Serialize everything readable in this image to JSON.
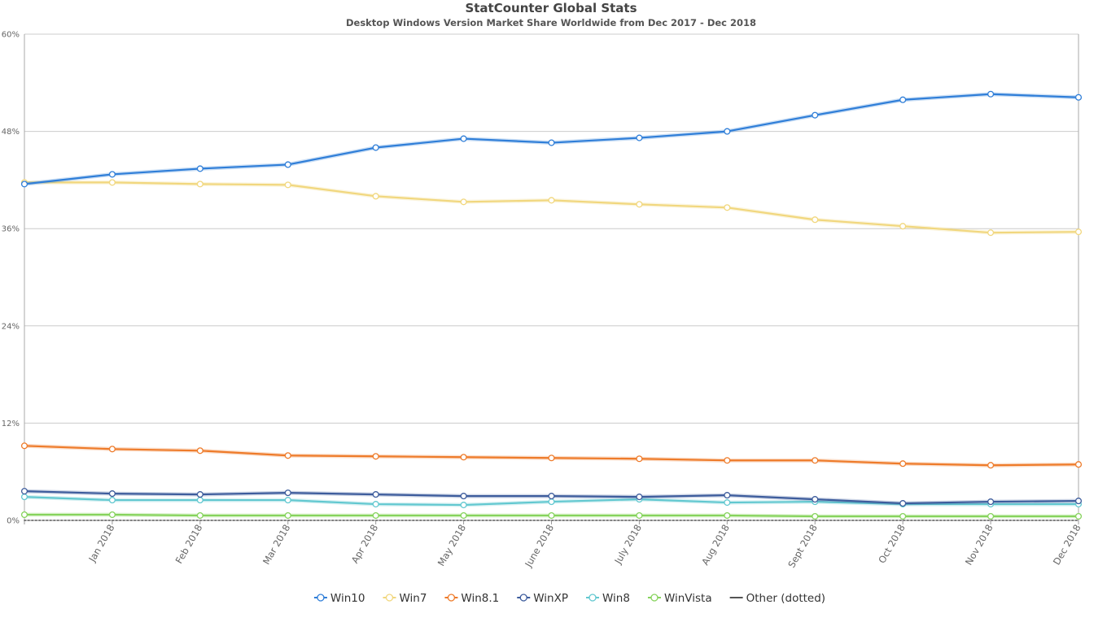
{
  "chart_data": {
    "type": "line",
    "title": "StatCounter Global Stats",
    "subtitle": "Desktop Windows Version Market Share Worldwide from Dec 2017 - Dec 2018",
    "x": [
      "Dec 2017",
      "Jan 2018",
      "Feb 2018",
      "Mar 2018",
      "Apr 2018",
      "May 2018",
      "June 2018",
      "July 2018",
      "Aug 2018",
      "Sept 2018",
      "Oct 2018",
      "Nov 2018",
      "Dec 2018"
    ],
    "x_tick_labels": [
      "Jan 2018",
      "Feb 2018",
      "Mar 2018",
      "Apr 2018",
      "May 2018",
      "June 2018",
      "July 2018",
      "Aug 2018",
      "Sept 2018",
      "Oct 2018",
      "Nov 2018",
      "Dec 2018"
    ],
    "y_tick_labels": [
      "0%",
      "12%",
      "24%",
      "36%",
      "48%",
      "60%"
    ],
    "y_ticks": [
      0,
      12,
      24,
      36,
      48,
      60
    ],
    "ylim": [
      0,
      60
    ],
    "y_unit": "%",
    "grid": true,
    "legend_position": "bottom",
    "series": [
      {
        "name": "Win10",
        "color": "#2f7ed8",
        "style": "solid",
        "values": [
          41.5,
          42.7,
          43.4,
          43.9,
          46.0,
          47.1,
          46.6,
          47.2,
          48.0,
          50.0,
          51.9,
          52.6,
          52.2
        ]
      },
      {
        "name": "Win7",
        "color": "#f1d77e",
        "style": "solid",
        "values": [
          41.7,
          41.7,
          41.5,
          41.4,
          40.0,
          39.3,
          39.5,
          39.0,
          38.6,
          37.1,
          36.3,
          35.5,
          35.6
        ]
      },
      {
        "name": "Win8.1",
        "color": "#ee7b2a",
        "style": "solid",
        "values": [
          9.2,
          8.8,
          8.6,
          8.0,
          7.9,
          7.8,
          7.7,
          7.6,
          7.4,
          7.4,
          7.0,
          6.8,
          6.9
        ]
      },
      {
        "name": "WinXP",
        "color": "#3d5c9c",
        "style": "solid",
        "values": [
          3.6,
          3.3,
          3.2,
          3.4,
          3.2,
          3.0,
          3.0,
          2.9,
          3.1,
          2.6,
          2.1,
          2.3,
          2.4
        ]
      },
      {
        "name": "Win8",
        "color": "#62c8d0",
        "style": "solid",
        "values": [
          2.9,
          2.5,
          2.5,
          2.5,
          2.0,
          1.9,
          2.3,
          2.6,
          2.2,
          2.3,
          2.0,
          2.0,
          2.0
        ]
      },
      {
        "name": "WinVista",
        "color": "#86d35c",
        "style": "solid",
        "values": [
          0.7,
          0.7,
          0.6,
          0.6,
          0.6,
          0.6,
          0.6,
          0.6,
          0.6,
          0.5,
          0.5,
          0.5,
          0.5
        ]
      },
      {
        "name": "Other (dotted)",
        "color": "#555555",
        "style": "dotted",
        "values": [
          0,
          0,
          0,
          0,
          0,
          0,
          0,
          0,
          0,
          0,
          0,
          0,
          0
        ]
      }
    ]
  }
}
